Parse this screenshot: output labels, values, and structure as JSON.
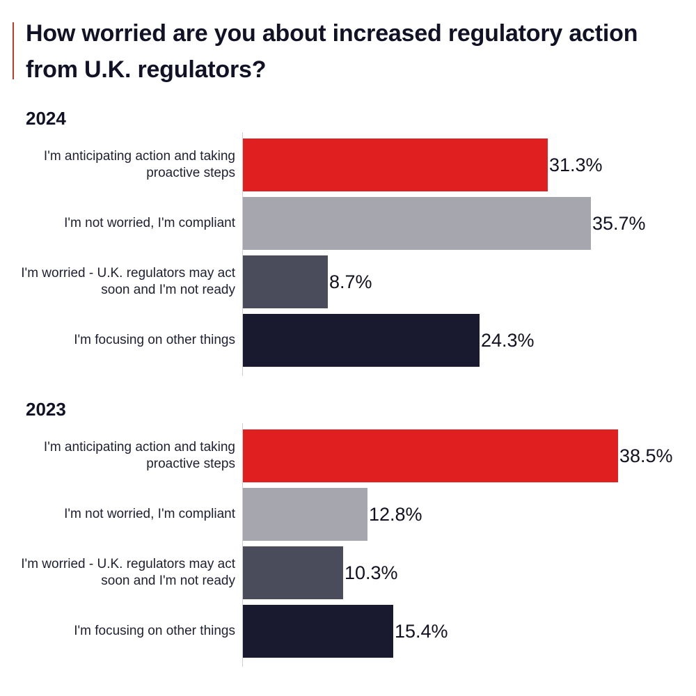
{
  "title": "How worried are you about increased regulatory action from U.K. regulators?",
  "colors": {
    "accent_rule": "#c0392b",
    "anticipating": "#e02020",
    "not_worried": "#a6a6ae",
    "worried": "#4a4c5c",
    "other_things": "#19192f"
  },
  "chart_data": [
    {
      "type": "bar",
      "orientation": "horizontal",
      "title": "2024",
      "categories": [
        "I'm anticipating action and taking proactive steps",
        "I'm not worried, I'm compliant",
        "I'm worried - U.K. regulators may act soon and I'm not ready",
        "I'm focusing on other things"
      ],
      "values": [
        31.3,
        35.7,
        8.7,
        24.3
      ],
      "value_labels": [
        "31.3%",
        "35.7%",
        "8.7%",
        "24.3%"
      ],
      "unit": "%",
      "xlim": [
        0,
        45
      ],
      "grid": false,
      "legend": "none"
    },
    {
      "type": "bar",
      "orientation": "horizontal",
      "title": "2023",
      "categories": [
        "I'm anticipating action and taking proactive steps",
        "I'm not worried, I'm compliant",
        "I'm worried - U.K. regulators may act soon and I'm not ready",
        "I'm focusing on other things"
      ],
      "values": [
        38.5,
        12.8,
        10.3,
        15.4
      ],
      "value_labels": [
        "38.5%",
        "12.8%",
        "10.3%",
        "15.4%"
      ],
      "unit": "%",
      "xlim": [
        0,
        45
      ],
      "grid": false,
      "legend": "none"
    }
  ]
}
